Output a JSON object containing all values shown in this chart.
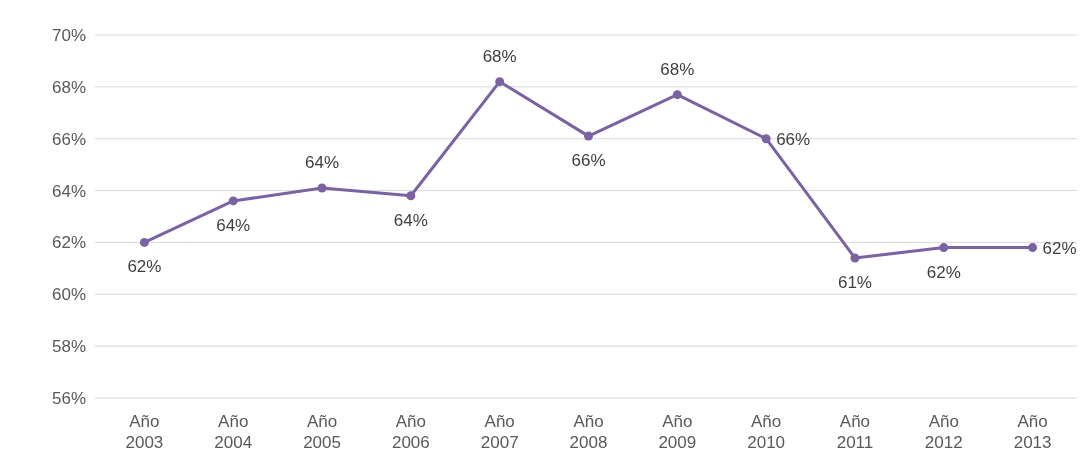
{
  "chart_data": {
    "type": "line",
    "categories": [
      "Año 2003",
      "Año 2004",
      "Año 2005",
      "Año 2006",
      "Año 2007",
      "Año 2008",
      "Año 2009",
      "Año 2010",
      "Año 2011",
      "Año 2012",
      "Año 2013"
    ],
    "series": [
      {
        "color": "#7b62a3",
        "values": [
          62.0,
          63.6,
          64.1,
          63.8,
          68.2,
          66.1,
          67.7,
          66.0,
          61.4,
          61.8,
          61.8
        ],
        "value_labels": [
          "62%",
          "64%",
          "64%",
          "64%",
          "68%",
          "66%",
          "68%",
          "66%",
          "61%",
          "62%",
          "62%"
        ]
      }
    ],
    "ylim": [
      56,
      70
    ],
    "yticks": [
      {
        "value": 56,
        "label": "56%"
      },
      {
        "value": 58,
        "label": "58%"
      },
      {
        "value": 60,
        "label": "60%"
      },
      {
        "value": 62,
        "label": "62%"
      },
      {
        "value": 64,
        "label": "64%"
      },
      {
        "value": 66,
        "label": "66%"
      },
      {
        "value": 68,
        "label": "68%"
      },
      {
        "value": 70,
        "label": "70%"
      }
    ],
    "grid": "y",
    "marker": "circle",
    "line_style": "solid"
  }
}
